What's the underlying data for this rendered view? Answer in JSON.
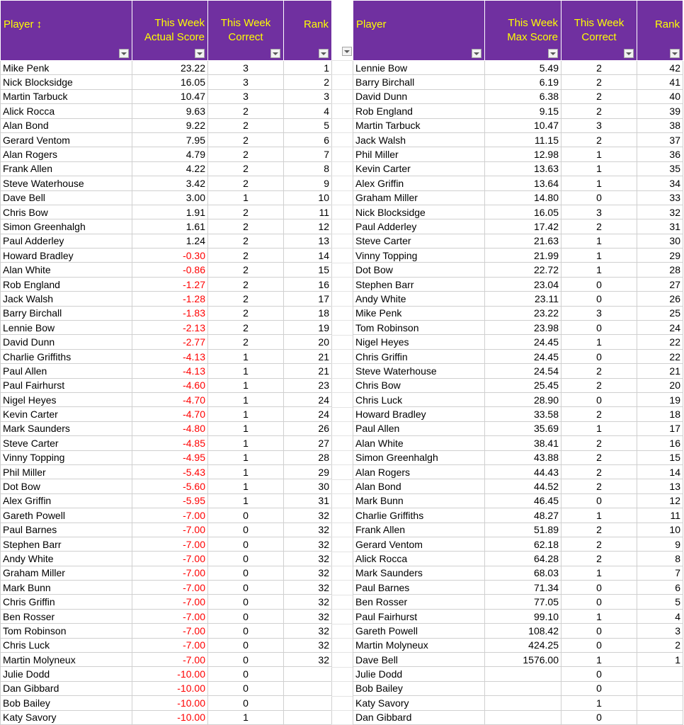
{
  "left_table": {
    "headers": [
      "Player ↕",
      "This Week Actual Score",
      "This Week Correct",
      "Rank"
    ],
    "rows": [
      [
        "Mike Penk",
        "23.22",
        "3",
        "1"
      ],
      [
        "Nick Blocksidge",
        "16.05",
        "3",
        "2"
      ],
      [
        "Martin Tarbuck",
        "10.47",
        "3",
        "3"
      ],
      [
        "Alick Rocca",
        "9.63",
        "2",
        "4"
      ],
      [
        "Alan Bond",
        "9.22",
        "2",
        "5"
      ],
      [
        "Gerard Ventom",
        "7.95",
        "2",
        "6"
      ],
      [
        "Alan Rogers",
        "4.79",
        "2",
        "7"
      ],
      [
        "Frank Allen",
        "4.22",
        "2",
        "8"
      ],
      [
        "Steve Waterhouse",
        "3.42",
        "2",
        "9"
      ],
      [
        "Dave Bell",
        "3.00",
        "1",
        "10"
      ],
      [
        "Chris Bow",
        "1.91",
        "2",
        "11"
      ],
      [
        "Simon Greenhalgh",
        "1.61",
        "2",
        "12"
      ],
      [
        "Paul Adderley",
        "1.24",
        "2",
        "13"
      ],
      [
        "Howard Bradley",
        "-0.30",
        "2",
        "14"
      ],
      [
        "Alan White",
        "-0.86",
        "2",
        "15"
      ],
      [
        "Rob England",
        "-1.27",
        "2",
        "16"
      ],
      [
        "Jack Walsh",
        "-1.28",
        "2",
        "17"
      ],
      [
        "Barry Birchall",
        "-1.83",
        "2",
        "18"
      ],
      [
        "Lennie Bow",
        "-2.13",
        "2",
        "19"
      ],
      [
        "David Dunn",
        "-2.77",
        "2",
        "20"
      ],
      [
        "Charlie Griffiths",
        "-4.13",
        "1",
        "21"
      ],
      [
        "Paul Allen",
        "-4.13",
        "1",
        "21"
      ],
      [
        "Paul Fairhurst",
        "-4.60",
        "1",
        "23"
      ],
      [
        "Nigel Heyes",
        "-4.70",
        "1",
        "24"
      ],
      [
        "Kevin Carter",
        "-4.70",
        "1",
        "24"
      ],
      [
        "Mark Saunders",
        "-4.80",
        "1",
        "26"
      ],
      [
        "Steve Carter",
        "-4.85",
        "1",
        "27"
      ],
      [
        "Vinny Topping",
        "-4.95",
        "1",
        "28"
      ],
      [
        "Phil Miller",
        "-5.43",
        "1",
        "29"
      ],
      [
        "Dot Bow",
        "-5.60",
        "1",
        "30"
      ],
      [
        "Alex Griffin",
        "-5.95",
        "1",
        "31"
      ],
      [
        "Gareth Powell",
        "-7.00",
        "0",
        "32"
      ],
      [
        "Paul Barnes",
        "-7.00",
        "0",
        "32"
      ],
      [
        "Stephen Barr",
        "-7.00",
        "0",
        "32"
      ],
      [
        "Andy White",
        "-7.00",
        "0",
        "32"
      ],
      [
        "Graham Miller",
        "-7.00",
        "0",
        "32"
      ],
      [
        "Mark Bunn",
        "-7.00",
        "0",
        "32"
      ],
      [
        "Chris Griffin",
        "-7.00",
        "0",
        "32"
      ],
      [
        "Ben Rosser",
        "-7.00",
        "0",
        "32"
      ],
      [
        "Tom Robinson",
        "-7.00",
        "0",
        "32"
      ],
      [
        "Chris Luck",
        "-7.00",
        "0",
        "32"
      ],
      [
        "Martin Molyneux",
        "-7.00",
        "0",
        "32"
      ],
      [
        "Julie Dodd",
        "-10.00",
        "0",
        ""
      ],
      [
        "Dan Gibbard",
        "-10.00",
        "0",
        ""
      ],
      [
        "Bob Bailey",
        "-10.00",
        "0",
        ""
      ],
      [
        "Katy Savory",
        "-10.00",
        "1",
        ""
      ]
    ]
  },
  "right_table": {
    "headers": [
      "Player",
      "This Week Max Score",
      "This Week Correct",
      "Rank"
    ],
    "rows": [
      [
        "Lennie Bow",
        "5.49",
        "2",
        "42"
      ],
      [
        "Barry Birchall",
        "6.19",
        "2",
        "41"
      ],
      [
        "David Dunn",
        "6.38",
        "2",
        "40"
      ],
      [
        "Rob England",
        "9.15",
        "2",
        "39"
      ],
      [
        "Martin Tarbuck",
        "10.47",
        "3",
        "38"
      ],
      [
        "Jack Walsh",
        "11.15",
        "2",
        "37"
      ],
      [
        "Phil Miller",
        "12.98",
        "1",
        "36"
      ],
      [
        "Kevin Carter",
        "13.63",
        "1",
        "35"
      ],
      [
        "Alex Griffin",
        "13.64",
        "1",
        "34"
      ],
      [
        "Graham Miller",
        "14.80",
        "0",
        "33"
      ],
      [
        "Nick Blocksidge",
        "16.05",
        "3",
        "32"
      ],
      [
        "Paul Adderley",
        "17.42",
        "2",
        "31"
      ],
      [
        "Steve Carter",
        "21.63",
        "1",
        "30"
      ],
      [
        "Vinny Topping",
        "21.99",
        "1",
        "29"
      ],
      [
        "Dot Bow",
        "22.72",
        "1",
        "28"
      ],
      [
        "Stephen Barr",
        "23.04",
        "0",
        "27"
      ],
      [
        "Andy White",
        "23.11",
        "0",
        "26"
      ],
      [
        "Mike Penk",
        "23.22",
        "3",
        "25"
      ],
      [
        "Tom Robinson",
        "23.98",
        "0",
        "24"
      ],
      [
        "Nigel Heyes",
        "24.45",
        "1",
        "22"
      ],
      [
        "Chris Griffin",
        "24.45",
        "0",
        "22"
      ],
      [
        "Steve Waterhouse",
        "24.54",
        "2",
        "21"
      ],
      [
        "Chris Bow",
        "25.45",
        "2",
        "20"
      ],
      [
        "Chris Luck",
        "28.90",
        "0",
        "19"
      ],
      [
        "Howard Bradley",
        "33.58",
        "2",
        "18"
      ],
      [
        "Paul Allen",
        "35.69",
        "1",
        "17"
      ],
      [
        "Alan White",
        "38.41",
        "2",
        "16"
      ],
      [
        "Simon Greenhalgh",
        "43.88",
        "2",
        "15"
      ],
      [
        "Alan Rogers",
        "44.43",
        "2",
        "14"
      ],
      [
        "Alan Bond",
        "44.52",
        "2",
        "13"
      ],
      [
        "Mark Bunn",
        "46.45",
        "0",
        "12"
      ],
      [
        "Charlie Griffiths",
        "48.27",
        "1",
        "11"
      ],
      [
        "Frank Allen",
        "51.89",
        "2",
        "10"
      ],
      [
        "Gerard Ventom",
        "62.18",
        "2",
        "9"
      ],
      [
        "Alick Rocca",
        "64.28",
        "2",
        "8"
      ],
      [
        "Mark Saunders",
        "68.03",
        "1",
        "7"
      ],
      [
        "Paul Barnes",
        "71.34",
        "0",
        "6"
      ],
      [
        "Ben Rosser",
        "77.05",
        "0",
        "5"
      ],
      [
        "Paul Fairhurst",
        "99.10",
        "1",
        "4"
      ],
      [
        "Gareth Powell",
        "108.42",
        "0",
        "3"
      ],
      [
        "Martin Molyneux",
        "424.25",
        "0",
        "2"
      ],
      [
        "Dave Bell",
        "1576.00",
        "1",
        "1"
      ],
      [
        "Julie Dodd",
        "",
        "0",
        ""
      ],
      [
        "Bob Bailey",
        "",
        "0",
        ""
      ],
      [
        "Katy Savory",
        "",
        "1",
        ""
      ],
      [
        "Dan Gibbard",
        "",
        "0",
        ""
      ]
    ]
  },
  "colors": {
    "header_bg": "#7030a0",
    "header_text": "#ffff00",
    "negative_text": "#ff0000"
  },
  "icons": {
    "filter": "filter-dropdown-icon"
  }
}
